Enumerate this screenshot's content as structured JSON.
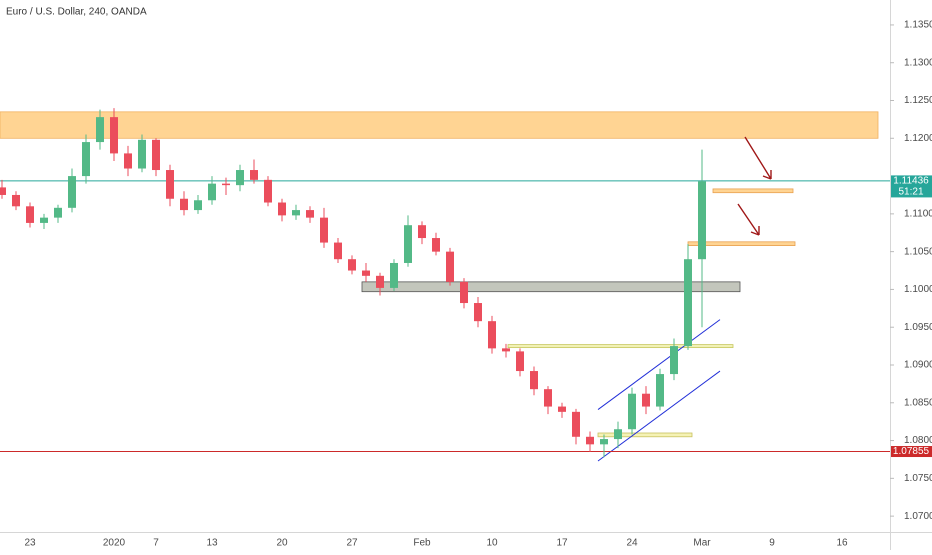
{
  "chart_data": {
    "type": "candlestick",
    "title": "Euro / U.S. Dollar, 240, OANDA",
    "up_color": "#53b987",
    "down_color": "#eb4d5c",
    "categories": [
      null,
      null,
      "23",
      null,
      null,
      null,
      null,
      null,
      "2020",
      null,
      null,
      "7",
      null,
      null,
      null,
      "13",
      null,
      null,
      null,
      null,
      "20",
      null,
      null,
      null,
      null,
      "27",
      null,
      null,
      null,
      null,
      "Feb",
      null,
      null,
      null,
      null,
      "10",
      null,
      null,
      null,
      null,
      "17",
      null,
      null,
      null,
      null,
      "24",
      null,
      null,
      null,
      null,
      "Mar",
      null,
      null,
      null,
      null,
      "9",
      null,
      null,
      null,
      null,
      "16",
      null,
      null,
      null
    ],
    "ohlc": [
      [
        1.1135,
        1.1145,
        1.112,
        1.1125
      ],
      [
        1.1125,
        1.113,
        1.1105,
        1.111
      ],
      [
        1.111,
        1.1115,
        1.1082,
        1.1088
      ],
      [
        1.1088,
        1.11,
        1.108,
        1.1095
      ],
      [
        1.1095,
        1.1112,
        1.1088,
        1.1108
      ],
      [
        1.1108,
        1.116,
        1.1102,
        1.115
      ],
      [
        1.115,
        1.1205,
        1.114,
        1.1195
      ],
      [
        1.1195,
        1.1238,
        1.1185,
        1.1228
      ],
      [
        1.1228,
        1.124,
        1.117,
        1.118
      ],
      [
        1.118,
        1.119,
        1.115,
        1.116
      ],
      [
        1.116,
        1.1205,
        1.1155,
        1.1198
      ],
      [
        1.1198,
        1.12,
        1.115,
        1.1158
      ],
      [
        1.1158,
        1.1165,
        1.111,
        1.112
      ],
      [
        1.112,
        1.113,
        1.1098,
        1.1105
      ],
      [
        1.1105,
        1.1125,
        1.11,
        1.1118
      ],
      [
        1.1118,
        1.115,
        1.1112,
        1.114
      ],
      [
        1.114,
        1.1148,
        1.1125,
        1.1138
      ],
      [
        1.1138,
        1.1165,
        1.113,
        1.1158
      ],
      [
        1.1158,
        1.1172,
        1.114,
        1.1145
      ],
      [
        1.1145,
        1.115,
        1.111,
        1.1115
      ],
      [
        1.1115,
        1.112,
        1.109,
        1.1098
      ],
      [
        1.1098,
        1.1112,
        1.1092,
        1.1105
      ],
      [
        1.1105,
        1.111,
        1.1088,
        1.1095
      ],
      [
        1.1095,
        1.1108,
        1.1055,
        1.1062
      ],
      [
        1.1062,
        1.1068,
        1.1035,
        1.104
      ],
      [
        1.104,
        1.1045,
        1.102,
        1.1025
      ],
      [
        1.1025,
        1.1035,
        1.101,
        1.1018
      ],
      [
        1.1018,
        1.1022,
        1.0992,
        1.1002
      ],
      [
        1.1002,
        1.104,
        1.0998,
        1.1035
      ],
      [
        1.1035,
        1.1098,
        1.103,
        1.1085
      ],
      [
        1.1085,
        1.109,
        1.106,
        1.1068
      ],
      [
        1.1068,
        1.1075,
        1.1045,
        1.105
      ],
      [
        1.105,
        1.1055,
        1.1005,
        1.101
      ],
      [
        1.101,
        1.1015,
        1.0975,
        1.0982
      ],
      [
        1.0982,
        1.099,
        1.095,
        1.0958
      ],
      [
        1.0958,
        1.0965,
        1.0915,
        1.0922
      ],
      [
        1.0922,
        1.0928,
        1.091,
        1.0918
      ],
      [
        1.0918,
        1.0922,
        1.0885,
        1.0892
      ],
      [
        1.0892,
        1.0898,
        1.086,
        1.0868
      ],
      [
        1.0868,
        1.0872,
        1.0835,
        1.0845
      ],
      [
        1.0845,
        1.085,
        1.083,
        1.0838
      ],
      [
        1.0838,
        1.0842,
        1.0795,
        1.0805
      ],
      [
        1.0805,
        1.0812,
        1.0785,
        1.0795
      ],
      [
        1.0795,
        1.0808,
        1.0778,
        1.0802
      ],
      [
        1.0802,
        1.0825,
        1.079,
        1.0815
      ],
      [
        1.0815,
        1.087,
        1.0808,
        1.0862
      ],
      [
        1.0862,
        1.0872,
        1.0835,
        1.0845
      ],
      [
        1.0845,
        1.0895,
        1.084,
        1.0888
      ],
      [
        1.0888,
        1.0935,
        1.088,
        1.0925
      ],
      [
        1.0925,
        1.106,
        1.092,
        1.104
      ],
      [
        1.104,
        1.1185,
        1.095,
        1.1143
      ],
      null,
      null,
      null,
      null,
      null,
      null,
      null,
      null,
      null,
      null,
      null,
      null,
      null
    ],
    "ylim": [
      1.0679,
      1.1383
    ],
    "yticks": [
      {
        "value": 1.07,
        "label": "1.07000"
      },
      {
        "value": 1.075,
        "label": "1.07500"
      },
      {
        "value": 1.08,
        "label": "1.08000"
      },
      {
        "value": 1.085,
        "label": "1.08500"
      },
      {
        "value": 1.09,
        "label": "1.09000"
      },
      {
        "value": 1.095,
        "label": "1.09500"
      },
      {
        "value": 1.1,
        "label": "1.10000"
      },
      {
        "value": 1.105,
        "label": "1.10500"
      },
      {
        "value": 1.11,
        "label": "1.11000"
      },
      {
        "value": 1.12,
        "label": "1.12000"
      },
      {
        "value": 1.125,
        "label": "1.12500"
      },
      {
        "value": 1.13,
        "label": "1.13000"
      },
      {
        "value": 1.135,
        "label": "1.13500"
      }
    ],
    "grid": false,
    "zones": [
      {
        "from": 1.12,
        "to": 1.1235,
        "color": "#ffcc80"
      },
      {
        "from": 1.1128,
        "to": 1.1133,
        "color": "#ffcc80"
      },
      {
        "from": 1.1058,
        "to": 1.1063,
        "color": "#ffcc80"
      },
      {
        "from": 1.0997,
        "to": 1.101,
        "color": "#b9bcb0"
      },
      {
        "from": 1.0923,
        "to": 1.0927,
        "color": "#eeeea8"
      },
      {
        "from": 1.0805,
        "to": 1.081,
        "color": "#f3f0a8"
      }
    ],
    "trend_lines": [
      {
        "from": 1.0841,
        "to": 1.096,
        "color": "#2230d8"
      },
      {
        "from": 1.0773,
        "to": 1.0892,
        "color": "#2230d8"
      }
    ],
    "price_lines": [
      {
        "value": 1.11436,
        "label": "1.11436",
        "color": "#26a69a",
        "countdown": "51:21"
      },
      {
        "value": 1.07855,
        "label": "1.07855",
        "color": "#cc2a2a"
      }
    ]
  }
}
